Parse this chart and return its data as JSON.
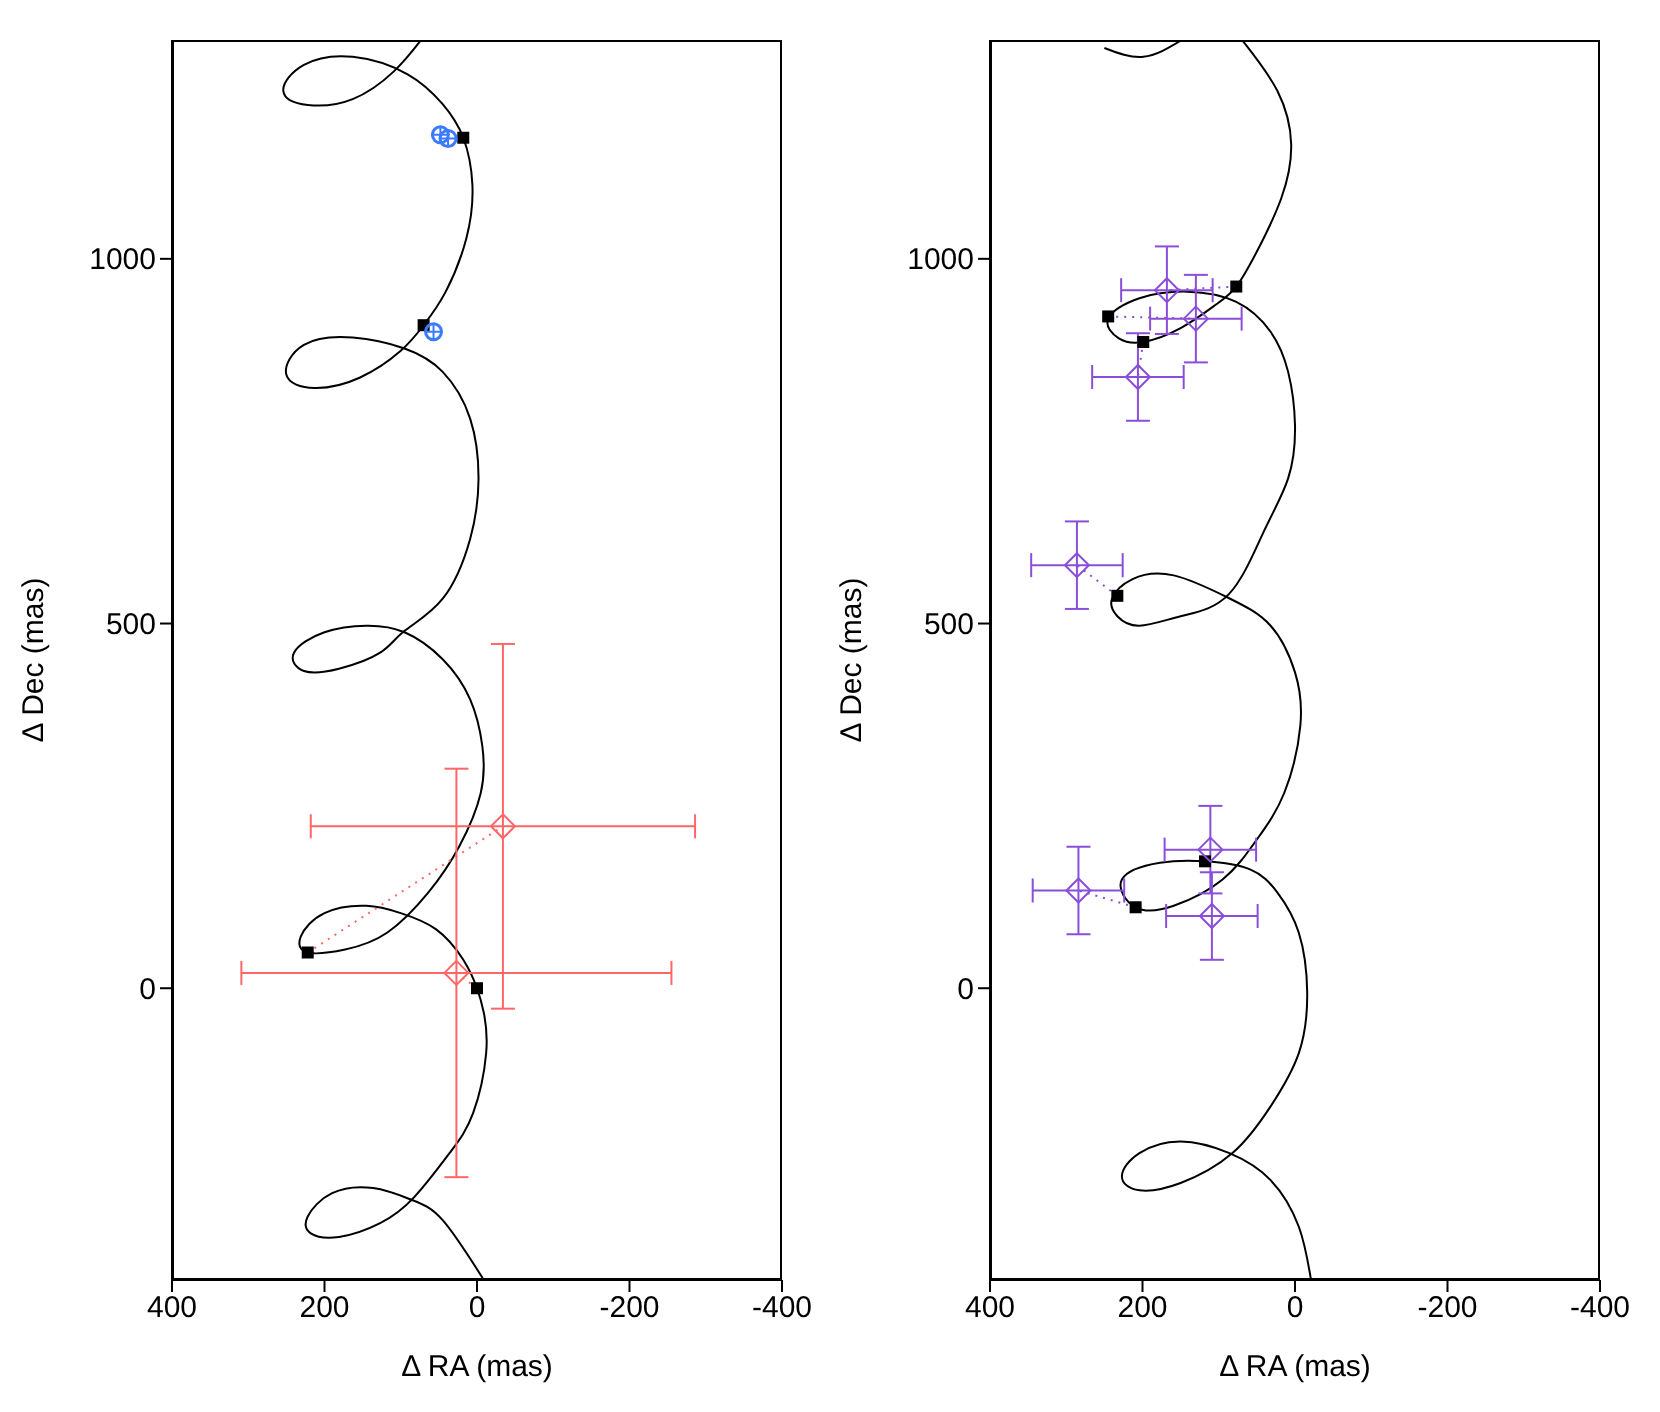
{
  "chart_data": [
    {
      "type": "scatter",
      "xlabel": "Δ RA (mas)",
      "ylabel": "Δ Dec (mas)",
      "xlim": [
        400,
        -400
      ],
      "xticks": [
        400,
        200,
        0,
        -200,
        -400
      ],
      "ylim": [
        -400,
        1300
      ],
      "yticks": [
        0,
        500,
        1000
      ],
      "series": [
        {
          "type": "line",
          "color": "#000000",
          "marker": "none",
          "line_style": "solid",
          "x": [
            -9,
            45,
            86,
            136,
            190,
            222,
            218,
            181,
            127,
            82,
            36,
            5,
            -12,
            -9,
            0,
            18,
            54,
            100,
            145,
            200,
            231,
            222,
            173,
            118,
            64,
            23,
            -5,
            -7,
            9,
            45,
            95,
            145,
            200,
            240,
            227,
            181,
            127,
            95,
            45,
            9,
            -2,
            9,
            45,
            95,
            163,
            227,
            250,
            213,
            154,
            100,
            70,
            41,
            14,
            6,
            18,
            45,
            91,
            163,
            227,
            254,
            222,
            163,
            109,
            74
          ],
          "values": [
            -400,
            -318,
            -290,
            -274,
            -281,
            -313,
            -336,
            -341,
            -322,
            -286,
            -226,
            -171,
            -89,
            -34,
            0,
            39,
            81,
            103,
            113,
            103,
            71,
            49,
            53,
            76,
            131,
            195,
            268,
            332,
            396,
            451,
            488,
            497,
            488,
            460,
            435,
            438,
            460,
            490,
            534,
            616,
            698,
            781,
            845,
            877,
            892,
            882,
            841,
            823,
            837,
            874,
            909,
            955,
            1028,
            1101,
            1166,
            1212,
            1253,
            1277,
            1266,
            1230,
            1211,
            1219,
            1257,
            1299
          ]
        },
        {
          "type": "line",
          "color": "#ff6666",
          "marker": "none",
          "line_style": "dotted",
          "x": [
            222,
            -34
          ],
          "values": [
            49,
            222
          ]
        },
        {
          "type": "line",
          "color": "#ff6666",
          "marker": "none",
          "line_style": "dotted",
          "x": [
            0,
            27
          ],
          "values": [
            0,
            21
          ]
        },
        {
          "color": "#000000",
          "marker": "square",
          "x": [
            0,
            222,
            70,
            18
          ],
          "values": [
            0,
            49,
            909,
            1166
          ]
        },
        {
          "color": "#3a7bff",
          "marker": "circle",
          "x": [
            48,
            38,
            57
          ],
          "values": [
            1170,
            1165,
            900
          ]
        },
        {
          "color": "#ff6666",
          "marker": "diamond",
          "x": [
            27,
            -34
          ],
          "values": [
            21,
            222
          ],
          "errors": [
            280,
            250
          ],
          "xerrors": [
            282,
            252
          ]
        }
      ]
    },
    {
      "type": "scatter",
      "xlabel": "Δ RA (mas)",
      "ylabel": "Δ Dec (mas)",
      "xlim": [
        400,
        -400
      ],
      "xticks": [
        400,
        200,
        0,
        -200,
        -400
      ],
      "ylim": [
        -400,
        1300
      ],
      "yticks": [
        0,
        500,
        1000
      ],
      "series": [
        {
          "type": "line",
          "color": "#000000",
          "marker": "none",
          "line_style": "solid",
          "x": [
            -21,
            -5,
            32,
            86,
            150,
            204,
            227,
            204,
            150,
            82,
            32,
            -5,
            -16,
            -5,
            23,
            59,
            118,
            177,
            227,
            209,
            159,
            95,
            50,
            14,
            -7,
            0,
            32,
            87,
            159,
            213,
            240,
            233,
            204,
            150,
            87,
            41,
            9,
            0,
            9,
            32,
            77,
            141,
            204,
            245,
            231,
            199,
            150,
            104,
            77,
            50,
            18,
            5,
            23,
            68
          ],
          "values": [
            -400,
            -327,
            -263,
            -226,
            -210,
            -226,
            -258,
            -277,
            -267,
            -226,
            -162,
            -89,
            -6,
            76,
            131,
            163,
            174,
            172,
            149,
            111,
            113,
            149,
            204,
            268,
            360,
            433,
            497,
            535,
            566,
            561,
            534,
            510,
            497,
            510,
            540,
            626,
            699,
            772,
            845,
            900,
            941,
            955,
            946,
            918,
            891,
            886,
            905,
            937,
            962,
            1010,
            1083,
            1157,
            1230,
            1298
          ]
        },
        {
          "type": "line",
          "color": "#000000",
          "marker": "none",
          "line_style": "solid",
          "x": [
            150,
            199,
            250
          ],
          "values": [
            1299,
            1277,
            1289
          ]
        },
        {
          "type": "line",
          "color": "#8a4fd8",
          "marker": "none",
          "line_style": "dotted",
          "x": [
            233,
            286
          ],
          "values": [
            538,
            580
          ]
        },
        {
          "type": "line",
          "color": "#8a4fd8",
          "marker": "none",
          "line_style": "dotted",
          "x": [
            209,
            284
          ],
          "values": [
            111,
            134
          ]
        },
        {
          "type": "line",
          "color": "#8a4fd8",
          "marker": "none",
          "line_style": "dotted",
          "x": [
            245,
            130
          ],
          "values": [
            921,
            918
          ]
        },
        {
          "type": "line",
          "color": "#8a4fd8",
          "marker": "none",
          "line_style": "dotted",
          "x": [
            199,
            206
          ],
          "values": [
            886,
            838
          ]
        },
        {
          "type": "line",
          "color": "#8a4fd8",
          "marker": "none",
          "line_style": "dotted",
          "x": [
            77,
            168
          ],
          "values": [
            962,
            957
          ]
        },
        {
          "color": "#000000",
          "marker": "square",
          "x": [
            118,
            209,
            233,
            245,
            199,
            77
          ],
          "values": [
            174,
            111,
            538,
            921,
            886,
            962
          ]
        },
        {
          "color": "#8a4fd8",
          "marker": "diamond",
          "x": [
            168,
            130,
            206,
            286,
            111,
            109,
            284
          ],
          "values": [
            957,
            918,
            838,
            580,
            190,
            99,
            134
          ],
          "errors": [
            60,
            60,
            60,
            60,
            60,
            60,
            60
          ],
          "xerrors": [
            60,
            60,
            60,
            60,
            60,
            60,
            60
          ]
        }
      ]
    }
  ]
}
